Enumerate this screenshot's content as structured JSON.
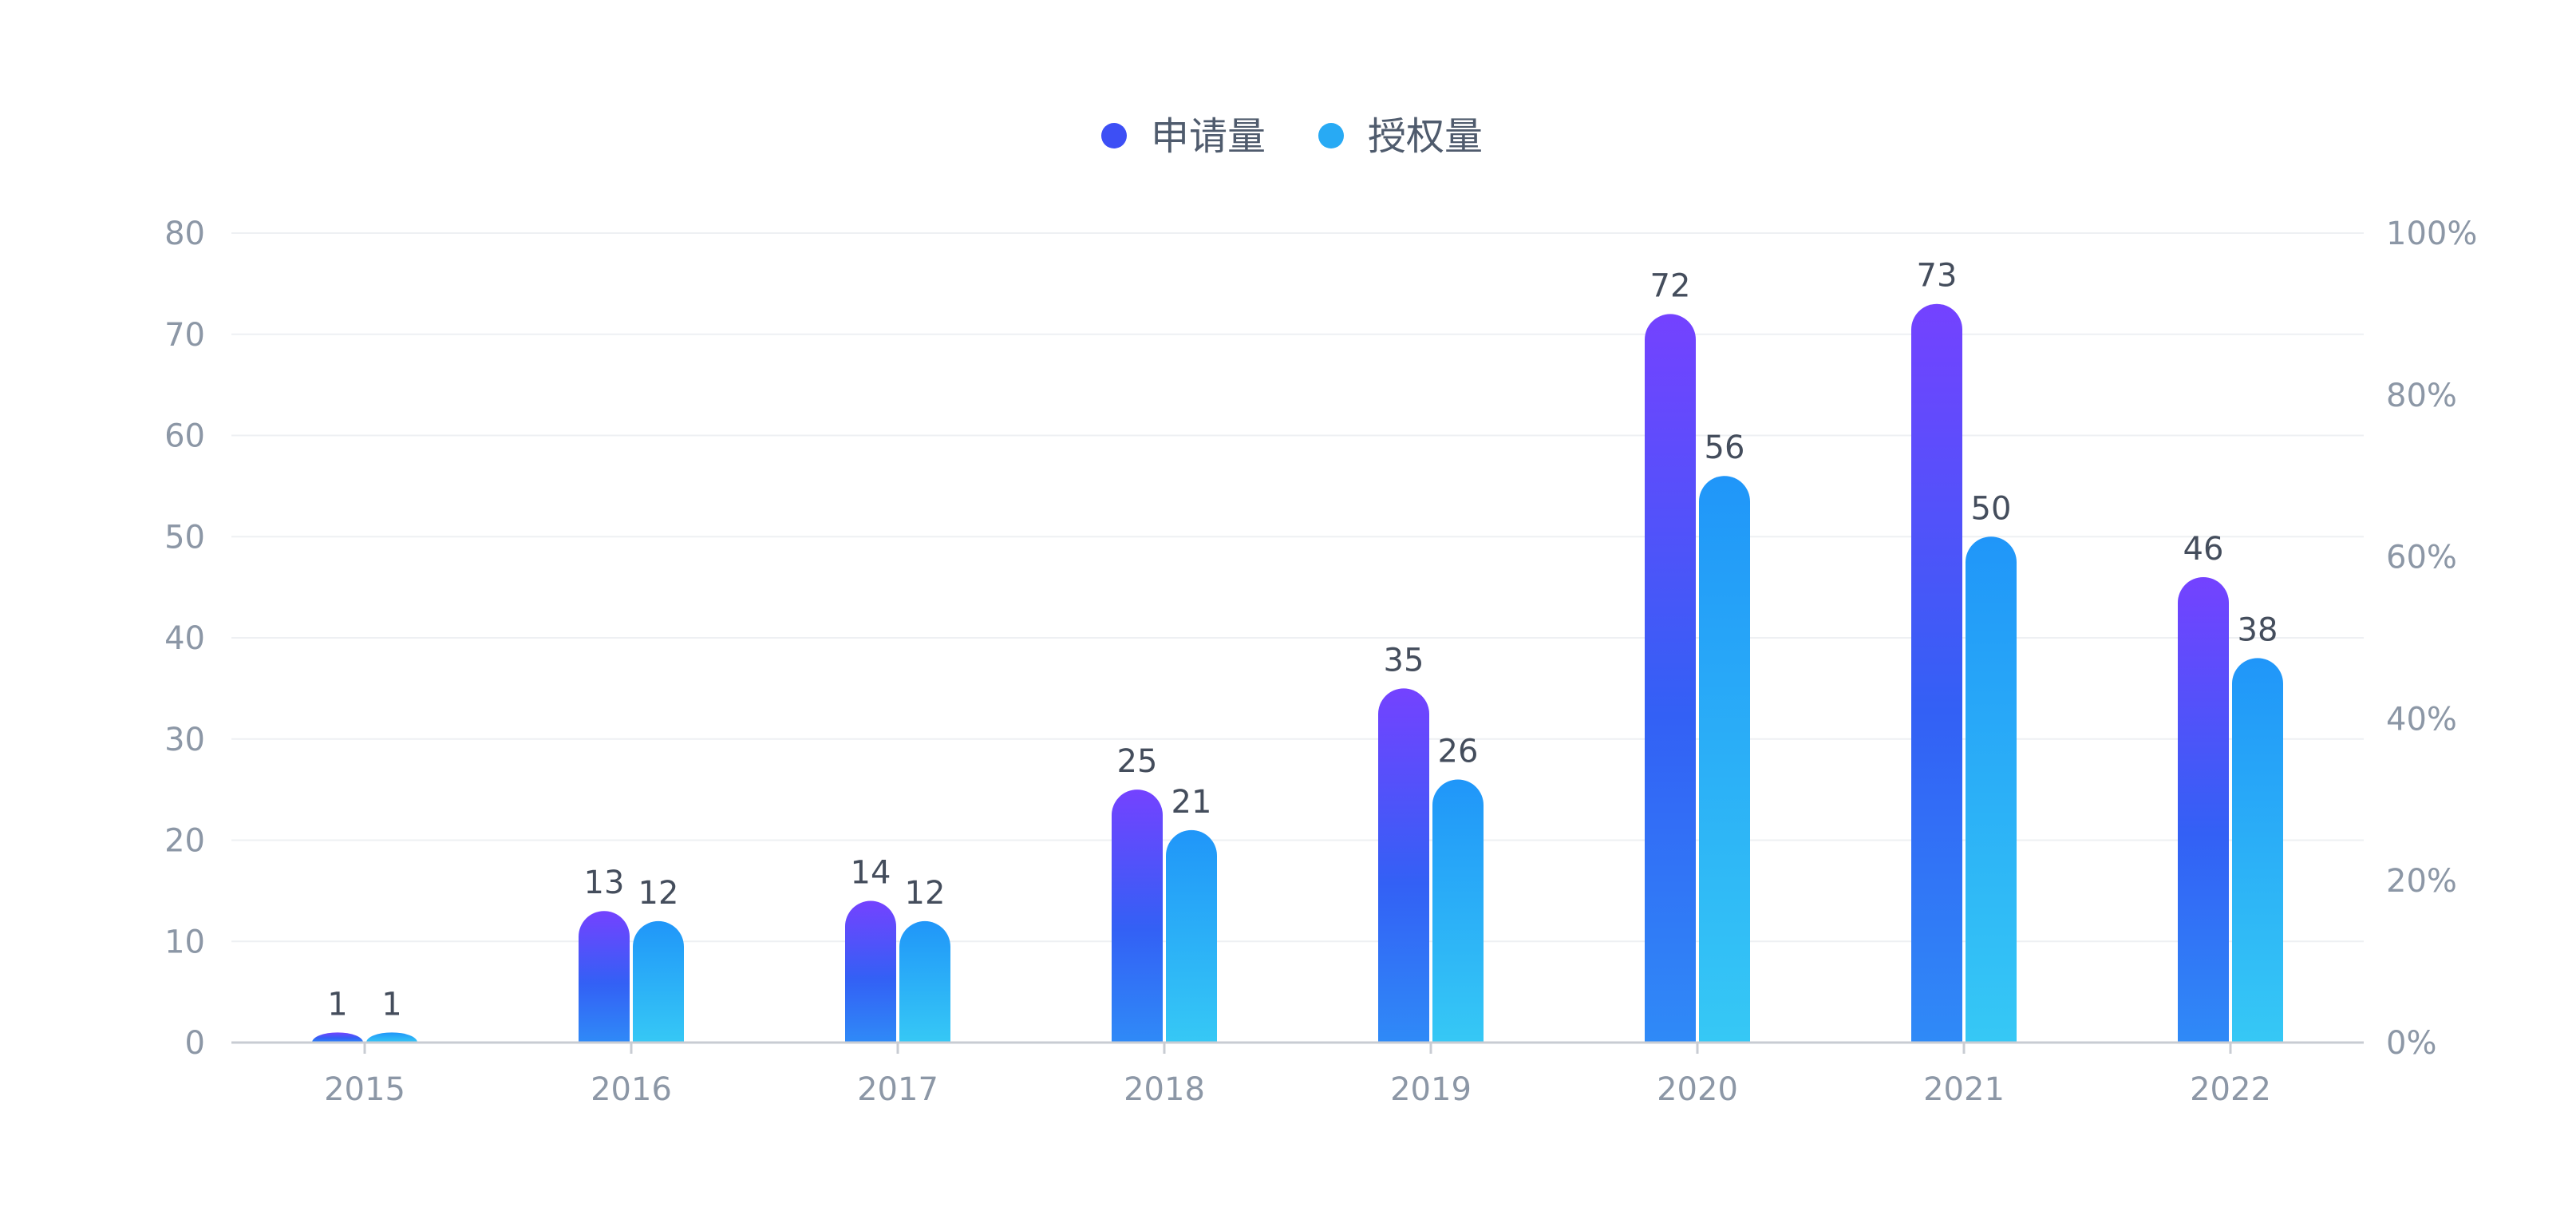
{
  "chart_data": {
    "type": "bar",
    "categories": [
      "2015",
      "2016",
      "2017",
      "2018",
      "2019",
      "2020",
      "2021",
      "2022"
    ],
    "series": [
      {
        "name": "申请量",
        "values": [
          1,
          13,
          14,
          25,
          35,
          72,
          73,
          46
        ],
        "color_top": "#7442ff",
        "color_mid": "#3360f5",
        "color_bottom": "#2f8af7"
      },
      {
        "name": "授权量",
        "values": [
          1,
          12,
          12,
          21,
          26,
          56,
          50,
          38
        ],
        "color_top": "#2096f9",
        "color_bottom": "#36c8f5"
      }
    ],
    "y_left": {
      "ticks": [
        "0",
        "10",
        "20",
        "30",
        "40",
        "50",
        "60",
        "70",
        "80"
      ],
      "range": [
        0,
        80
      ]
    },
    "y_right": {
      "ticks": [
        "0%",
        "20%",
        "40%",
        "60%",
        "80%",
        "100%"
      ],
      "range": [
        0,
        100
      ]
    },
    "grid": true,
    "legend_position": "top-center",
    "legend_markers": [
      {
        "name": "申请量",
        "color": "#3d4ff5"
      },
      {
        "name": "授权量",
        "color": "#28aaf4"
      }
    ]
  }
}
